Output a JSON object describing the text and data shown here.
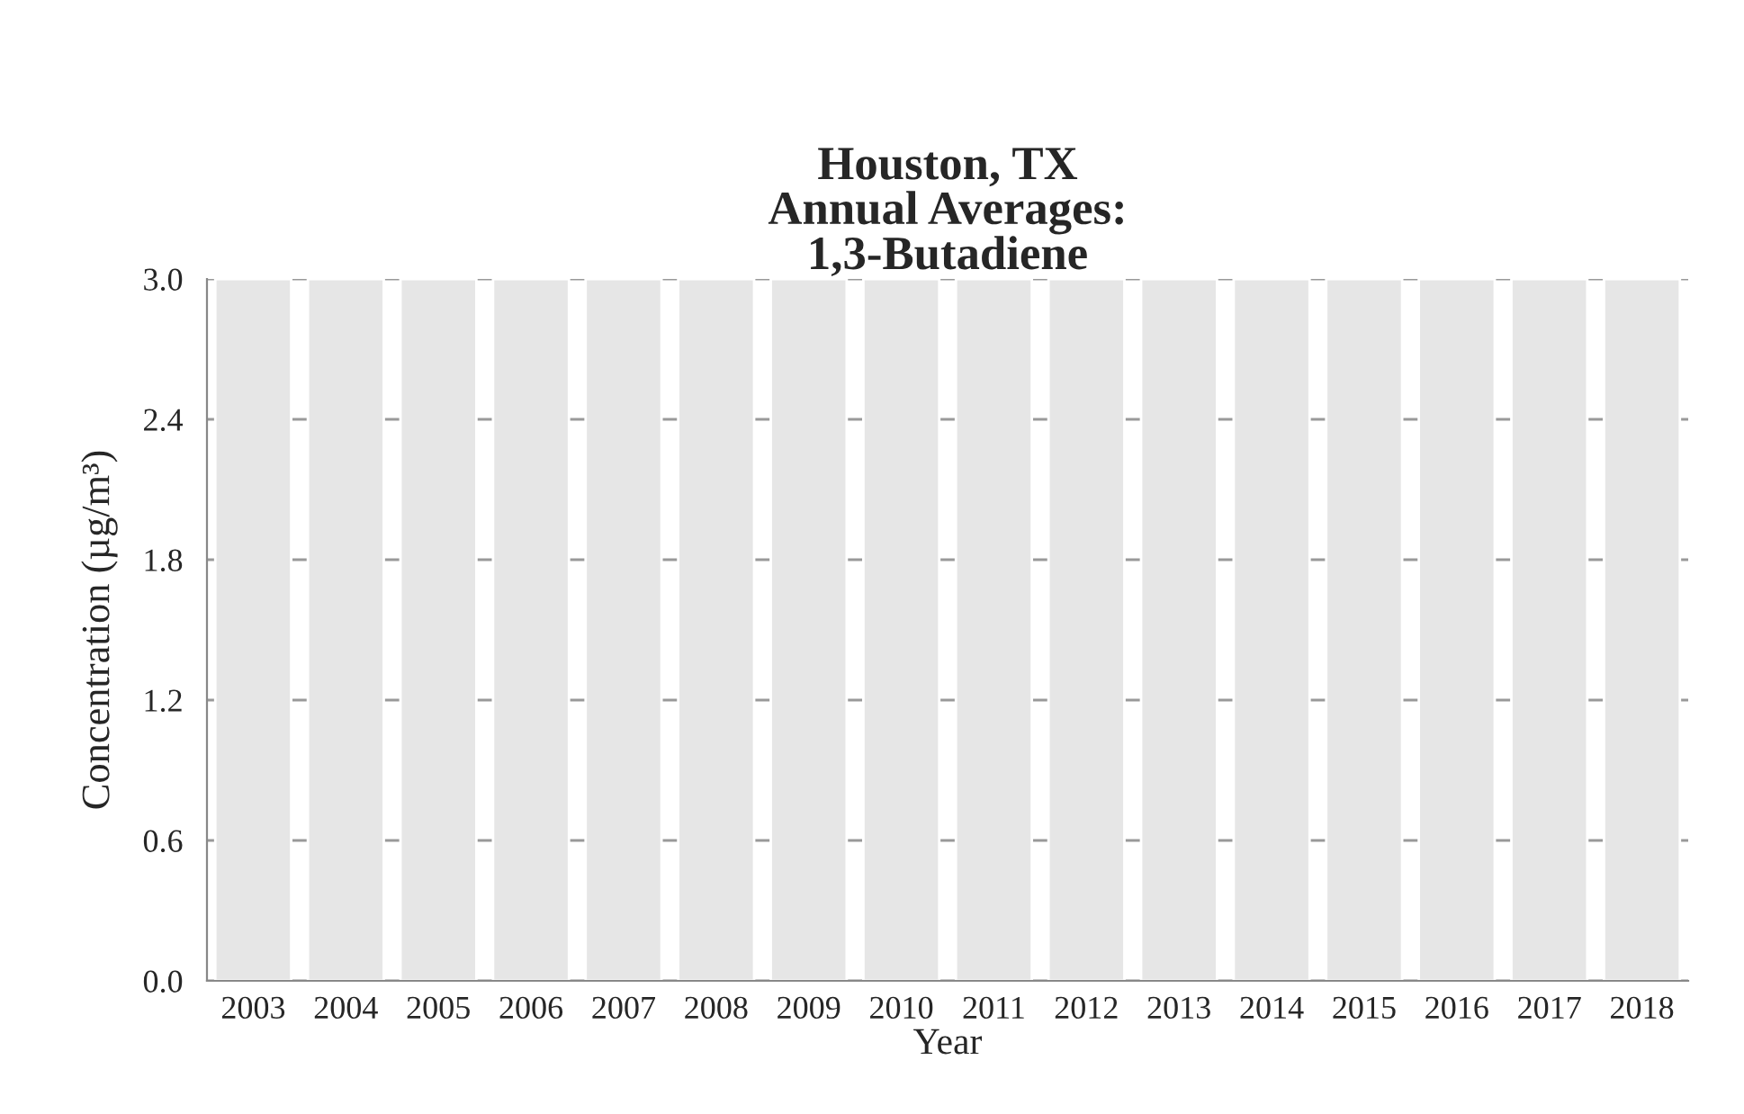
{
  "chart_data": {
    "type": "bar",
    "title": "Houston, TX\nAnnual Averages:\n1,3-Butadiene",
    "xlabel": "Year",
    "ylabel": "Concentration (µg/m³)",
    "categories": [
      "2003",
      "2004",
      "2005",
      "2006",
      "2007",
      "2008",
      "2009",
      "2010",
      "2011",
      "2012",
      "2013",
      "2014",
      "2015",
      "2016",
      "2017",
      "2018"
    ],
    "values": [
      3.0,
      3.0,
      3.0,
      3.0,
      3.0,
      3.0,
      3.0,
      3.0,
      3.0,
      3.0,
      3.0,
      3.0,
      3.0,
      3.0,
      3.0,
      3.0
    ],
    "color": "#e6e6e6",
    "ylim": [
      0,
      3.0
    ],
    "yticks": [
      {
        "value": 0,
        "label": "0.0"
      },
      {
        "value": 0.6,
        "label": "0.6"
      },
      {
        "value": 1.2,
        "label": "1.2"
      },
      {
        "value": 1.8,
        "label": "1.8"
      },
      {
        "value": 2.4,
        "label": "2.4"
      },
      {
        "value": 3.0,
        "label": "3.0"
      }
    ],
    "grid": "y",
    "legend": false
  }
}
